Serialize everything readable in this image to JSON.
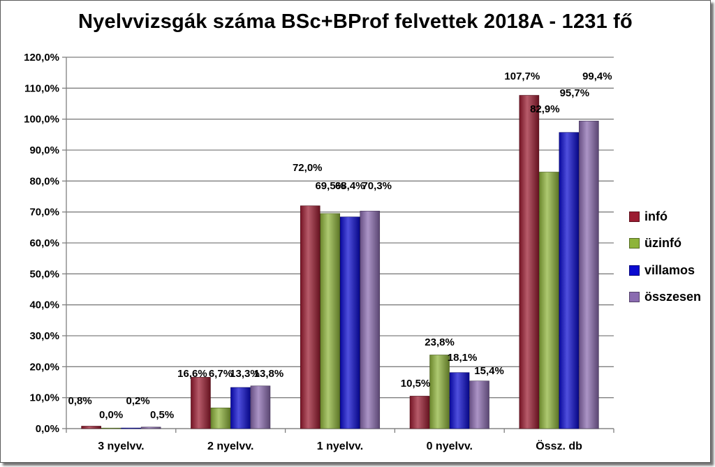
{
  "chart_data": {
    "type": "bar",
    "title": "Nyelvvizsgák száma BSc+BProf felvettek 2018A - 1231 fő",
    "categories": [
      "3 nyelvv.",
      "2 nyelvv.",
      "1 nyelvv.",
      "0 nyelvv.",
      "Össz. db"
    ],
    "ylim": [
      0,
      120
    ],
    "yticks": [
      "0,0%",
      "10,0%",
      "20,0%",
      "30,0%",
      "40,0%",
      "50,0%",
      "60,0%",
      "70,0%",
      "80,0%",
      "90,0%",
      "100,0%",
      "110,0%",
      "120,0%"
    ],
    "grid": true,
    "legend_position": "right",
    "series": [
      {
        "name": "infó",
        "color": "#9b1b30",
        "values": [
          0.8,
          16.6,
          72.0,
          10.5,
          107.7
        ],
        "labels": [
          "0,8%",
          "16,6%",
          "72,0%",
          "10,5%",
          "107,7%"
        ]
      },
      {
        "name": "üzinfó",
        "color": "#8eb43a",
        "values": [
          0.0,
          6.7,
          69.5,
          23.8,
          82.9
        ],
        "labels": [
          "0,0%",
          "6,7%",
          "69,5%",
          "23,8%",
          "82,9%"
        ]
      },
      {
        "name": "villamos",
        "color": "#0a0ad0",
        "values": [
          0.2,
          13.3,
          68.4,
          18.1,
          95.7
        ],
        "labels": [
          "0,2%",
          "13,3%",
          "68,4%",
          "18,1%",
          "95,7%"
        ]
      },
      {
        "name": "összesen",
        "color": "#8a6bb0",
        "values": [
          0.5,
          13.8,
          70.3,
          15.4,
          99.4
        ],
        "labels": [
          "0,5%",
          "13,8%",
          "70,3%",
          "15,4%",
          "99,4%"
        ]
      }
    ]
  }
}
